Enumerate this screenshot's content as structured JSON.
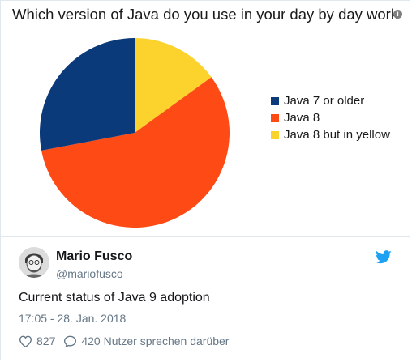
{
  "chart_data": {
    "type": "pie",
    "title": "Which version of Java do you use in your day by day work",
    "slices": [
      {
        "label": "Java 7 or older",
        "value": 28,
        "color": "#0b3a7a"
      },
      {
        "label": "Java 8",
        "value": 57,
        "color": "#fe4a14"
      },
      {
        "label": "Java 8 but in yellow",
        "value": 15,
        "color": "#fcd22c"
      }
    ],
    "legend_position": "right"
  },
  "tweet": {
    "author_name": "Mario Fusco",
    "author_handle": "@mariofusco",
    "text": "Current status of Java 9 adoption",
    "timestamp": "17:05 - 28. Jan. 2018",
    "likes": "827",
    "replies_text": "420 Nutzer sprechen darüber"
  },
  "icons": {
    "info": "info-icon",
    "twitter": "twitter-bird-icon",
    "like": "heart-icon",
    "reply": "speech-bubble-icon"
  }
}
